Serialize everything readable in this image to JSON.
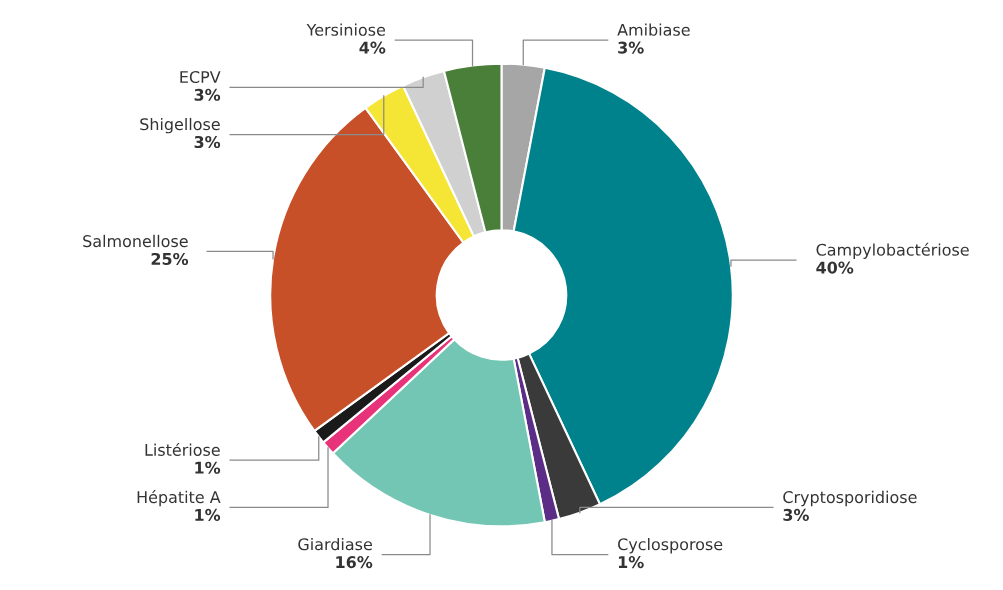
{
  "chart_data": {
    "type": "donut",
    "categories": [
      "Amibiase",
      "Campylobactériose",
      "Cryptosporidiose",
      "Cyclosporose",
      "Giardiase",
      "Hépatite A",
      "Listériose",
      "Salmonellose",
      "Shigellose",
      "ECPV",
      "Yersiniose"
    ],
    "values": [
      3,
      40,
      3,
      1,
      16,
      1,
      1,
      25,
      3,
      3,
      4
    ],
    "value_labels": [
      "3%",
      "40%",
      "3%",
      "1%",
      "16%",
      "1%",
      "1%",
      "25%",
      "3%",
      "3%",
      "4%"
    ],
    "colors": [
      "#a6a6a6",
      "#00828c",
      "#3a3a3a",
      "#5b2d86",
      "#74c6b4",
      "#e8337a",
      "#1a1a1a",
      "#c75028",
      "#f5e534",
      "#d0d0d0",
      "#4a7f3a"
    ],
    "legend": false
  }
}
